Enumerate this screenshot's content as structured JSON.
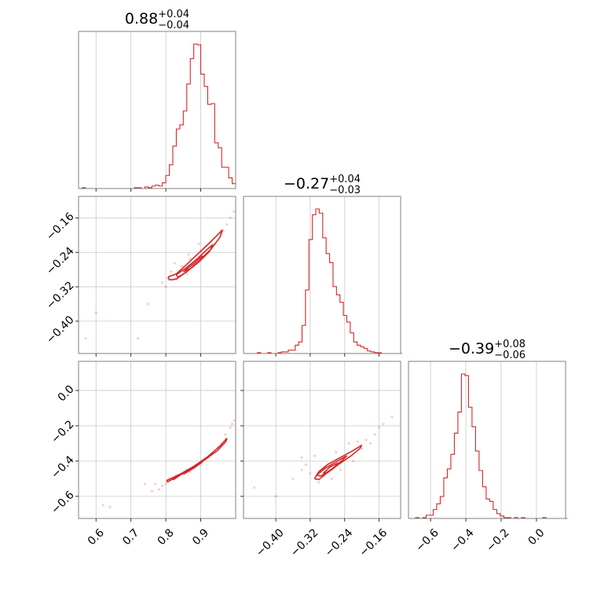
{
  "chart_data": {
    "type": "corner",
    "color": "#d62728",
    "grid": true,
    "parameters": [
      {
        "title": "0.88",
        "title_plus": "+0.04",
        "title_minus": "−0.04",
        "range": [
          0.55,
          1.0
        ],
        "ticks": [
          0.6,
          0.7,
          0.8,
          0.9
        ],
        "tick_labels": [
          "0.6",
          "0.7",
          "0.8",
          "0.9"
        ]
      },
      {
        "title": "−0.27",
        "title_plus": "+0.04",
        "title_minus": "−0.03",
        "range": [
          -0.475,
          -0.11
        ],
        "ticks": [
          -0.4,
          -0.32,
          -0.24,
          -0.16
        ],
        "tick_labels": [
          "−0.40",
          "−0.32",
          "−0.24",
          "−0.16"
        ]
      },
      {
        "title": "−0.39",
        "title_plus": "+0.08",
        "title_minus": "−0.06",
        "range": [
          -0.725,
          0.165
        ],
        "ticks": [
          -0.6,
          -0.4,
          -0.2,
          0.0
        ],
        "tick_labels": [
          "−0.6",
          "−0.4",
          "−0.2",
          "0.0"
        ]
      }
    ],
    "histograms": [
      {
        "param": 0,
        "bins": [
          0.55,
          0.56,
          0.57,
          0.58,
          0.59,
          0.6,
          0.61,
          0.62,
          0.63,
          0.64,
          0.65,
          0.66,
          0.67,
          0.68,
          0.69,
          0.7,
          0.71,
          0.72,
          0.73,
          0.74,
          0.75,
          0.76,
          0.77,
          0.78,
          0.79,
          0.8,
          0.81,
          0.82,
          0.83,
          0.84,
          0.85,
          0.86,
          0.87,
          0.88,
          0.89,
          0.9,
          0.91,
          0.92,
          0.93,
          0.94,
          0.95,
          0.96,
          0.97,
          0.98,
          0.99,
          1.0
        ],
        "counts": [
          0,
          1,
          0,
          0,
          0,
          0,
          0,
          0,
          0,
          0,
          0,
          0,
          0,
          0,
          0,
          0,
          1,
          1,
          0,
          2,
          1,
          3,
          4,
          3,
          7,
          16,
          29,
          52,
          73,
          78,
          95,
          128,
          159,
          177,
          176,
          140,
          125,
          103,
          104,
          56,
          50,
          26,
          26,
          13,
          6
        ]
      },
      {
        "param": 1,
        "bins": [
          -0.475,
          -0.467,
          -0.459,
          -0.451,
          -0.443,
          -0.435,
          -0.427,
          -0.419,
          -0.411,
          -0.403,
          -0.395,
          -0.387,
          -0.379,
          -0.371,
          -0.363,
          -0.355,
          -0.347,
          -0.339,
          -0.331,
          -0.323,
          -0.315,
          -0.307,
          -0.299,
          -0.291,
          -0.283,
          -0.275,
          -0.267,
          -0.259,
          -0.251,
          -0.243,
          -0.235,
          -0.227,
          -0.219,
          -0.211,
          -0.203,
          -0.195,
          -0.187,
          -0.179,
          -0.171,
          -0.163,
          -0.155,
          -0.147,
          -0.139,
          -0.131,
          -0.123,
          -0.115,
          -0.107
        ],
        "counts": [
          0,
          0,
          0,
          0,
          1,
          0,
          0,
          1,
          0,
          0,
          1,
          2,
          2,
          4,
          4,
          10,
          14,
          34,
          77,
          138,
          168,
          175,
          170,
          140,
          121,
          110,
          81,
          71,
          62,
          46,
          38,
          25,
          14,
          10,
          8,
          6,
          3,
          2,
          1,
          1,
          0,
          0,
          0,
          0,
          0,
          0
        ]
      },
      {
        "param": 2,
        "bins": [
          -0.725,
          -0.705,
          -0.685,
          -0.665,
          -0.645,
          -0.625,
          -0.605,
          -0.585,
          -0.565,
          -0.545,
          -0.525,
          -0.505,
          -0.485,
          -0.465,
          -0.445,
          -0.425,
          -0.405,
          -0.385,
          -0.365,
          -0.345,
          -0.325,
          -0.305,
          -0.285,
          -0.265,
          -0.245,
          -0.225,
          -0.205,
          -0.185,
          -0.165,
          -0.145,
          -0.125,
          -0.105,
          -0.085,
          -0.065,
          -0.045,
          -0.025,
          -0.005,
          0.015,
          0.035,
          0.055,
          0.075,
          0.095,
          0.115,
          0.135,
          0.155,
          0.175
        ],
        "counts": [
          0,
          0,
          1,
          0,
          1,
          4,
          4,
          11,
          18,
          27,
          50,
          61,
          79,
          105,
          131,
          178,
          176,
          137,
          113,
          83,
          59,
          39,
          24,
          21,
          11,
          6,
          3,
          1,
          1,
          0,
          1,
          0,
          1,
          0,
          0,
          0,
          0,
          0,
          1,
          0,
          0,
          0,
          0,
          0,
          0
        ]
      }
    ],
    "joints": [
      {
        "x_param": 0,
        "y_param": 1,
        "contours": [
          [
            [
              0.807,
              -0.297
            ],
            [
              0.83,
              -0.29
            ],
            [
              0.86,
              -0.268
            ],
            [
              0.89,
              -0.245
            ],
            [
              0.92,
              -0.222
            ],
            [
              0.95,
              -0.198
            ],
            [
              0.962,
              -0.188
            ],
            [
              0.955,
              -0.205
            ],
            [
              0.93,
              -0.232
            ],
            [
              0.895,
              -0.26
            ],
            [
              0.86,
              -0.285
            ],
            [
              0.83,
              -0.302
            ],
            [
              0.81,
              -0.304
            ],
            [
              0.807,
              -0.297
            ]
          ],
          [
            [
              0.83,
              -0.292
            ],
            [
              0.86,
              -0.275
            ],
            [
              0.89,
              -0.255
            ],
            [
              0.92,
              -0.232
            ],
            [
              0.935,
              -0.222
            ],
            [
              0.925,
              -0.238
            ],
            [
              0.895,
              -0.262
            ],
            [
              0.86,
              -0.285
            ],
            [
              0.835,
              -0.298
            ],
            [
              0.83,
              -0.292
            ]
          ],
          [
            [
              0.85,
              -0.285
            ],
            [
              0.88,
              -0.266
            ],
            [
              0.905,
              -0.248
            ],
            [
              0.9,
              -0.258
            ],
            [
              0.87,
              -0.278
            ],
            [
              0.85,
              -0.285
            ]
          ]
        ],
        "points": [
          [
            0.83,
            -0.302
          ],
          [
            0.82,
            -0.305
          ],
          [
            0.805,
            -0.3
          ],
          [
            0.79,
            -0.31
          ],
          [
            0.815,
            -0.285
          ],
          [
            0.845,
            -0.272
          ],
          [
            0.87,
            -0.255
          ],
          [
            0.9,
            -0.238
          ],
          [
            0.93,
            -0.215
          ],
          [
            0.955,
            -0.195
          ],
          [
            0.975,
            -0.175
          ],
          [
            0.985,
            -0.16
          ],
          [
            0.995,
            -0.145
          ],
          [
            0.88,
            -0.27
          ],
          [
            0.86,
            -0.29
          ],
          [
            0.84,
            -0.295
          ],
          [
            0.91,
            -0.25
          ],
          [
            0.94,
            -0.22
          ],
          [
            0.965,
            -0.19
          ],
          [
            0.8,
            -0.32
          ],
          [
            0.75,
            -0.36
          ],
          [
            0.72,
            -0.44
          ],
          [
            0.6,
            -0.38
          ],
          [
            0.57,
            -0.44
          ],
          [
            0.825,
            -0.265
          ],
          [
            0.865,
            -0.245
          ],
          [
            0.895,
            -0.22
          ]
        ]
      },
      {
        "x_param": 0,
        "y_param": 2,
        "contours": [
          [
            [
              0.802,
              -0.51
            ],
            [
              0.84,
              -0.475
            ],
            [
              0.88,
              -0.43
            ],
            [
              0.92,
              -0.375
            ],
            [
              0.955,
              -0.315
            ],
            [
              0.975,
              -0.27
            ],
            [
              0.972,
              -0.29
            ],
            [
              0.948,
              -0.34
            ],
            [
              0.91,
              -0.395
            ],
            [
              0.87,
              -0.445
            ],
            [
              0.83,
              -0.49
            ],
            [
              0.805,
              -0.518
            ],
            [
              0.802,
              -0.51
            ]
          ],
          [
            [
              0.82,
              -0.5
            ],
            [
              0.86,
              -0.458
            ],
            [
              0.9,
              -0.408
            ],
            [
              0.935,
              -0.352
            ],
            [
              0.928,
              -0.365
            ],
            [
              0.89,
              -0.42
            ],
            [
              0.85,
              -0.468
            ],
            [
              0.822,
              -0.505
            ],
            [
              0.82,
              -0.5
            ]
          ],
          [
            [
              0.85,
              -0.475
            ],
            [
              0.88,
              -0.44
            ],
            [
              0.905,
              -0.405
            ],
            [
              0.895,
              -0.418
            ],
            [
              0.865,
              -0.455
            ],
            [
              0.85,
              -0.475
            ]
          ]
        ],
        "points": [
          [
            0.76,
            -0.57
          ],
          [
            0.79,
            -0.54
          ],
          [
            0.74,
            -0.53
          ],
          [
            0.97,
            -0.25
          ],
          [
            0.985,
            -0.21
          ],
          [
            0.995,
            -0.17
          ],
          [
            0.62,
            -0.65
          ],
          [
            0.64,
            -0.66
          ],
          [
            0.81,
            -0.5
          ],
          [
            0.83,
            -0.48
          ],
          [
            0.86,
            -0.45
          ],
          [
            0.89,
            -0.42
          ],
          [
            0.92,
            -0.38
          ],
          [
            0.95,
            -0.32
          ],
          [
            0.96,
            -0.3
          ],
          [
            0.78,
            -0.56
          ],
          [
            0.77,
            -0.53
          ],
          [
            0.99,
            -0.19
          ],
          [
            0.8,
            -0.53
          ],
          [
            0.87,
            -0.46
          ]
        ]
      },
      {
        "x_param": 1,
        "y_param": 2,
        "contours": [
          [
            [
              -0.31,
              -0.5
            ],
            [
              -0.3,
              -0.46
            ],
            [
              -0.28,
              -0.42
            ],
            [
              -0.25,
              -0.38
            ],
            [
              -0.22,
              -0.34
            ],
            [
              -0.2,
              -0.31
            ],
            [
              -0.205,
              -0.33
            ],
            [
              -0.225,
              -0.37
            ],
            [
              -0.255,
              -0.42
            ],
            [
              -0.28,
              -0.465
            ],
            [
              -0.3,
              -0.505
            ],
            [
              -0.31,
              -0.5
            ]
          ],
          [
            [
              -0.305,
              -0.48
            ],
            [
              -0.285,
              -0.44
            ],
            [
              -0.26,
              -0.405
            ],
            [
              -0.235,
              -0.37
            ],
            [
              -0.245,
              -0.395
            ],
            [
              -0.27,
              -0.445
            ],
            [
              -0.295,
              -0.485
            ],
            [
              -0.305,
              -0.48
            ]
          ],
          [
            [
              -0.29,
              -0.47
            ],
            [
              -0.275,
              -0.435
            ],
            [
              -0.255,
              -0.41
            ],
            [
              -0.265,
              -0.44
            ],
            [
              -0.28,
              -0.465
            ],
            [
              -0.29,
              -0.47
            ]
          ]
        ],
        "points": [
          [
            -0.33,
            -0.42
          ],
          [
            -0.34,
            -0.38
          ],
          [
            -0.31,
            -0.37
          ],
          [
            -0.26,
            -0.35
          ],
          [
            -0.23,
            -0.3
          ],
          [
            -0.21,
            -0.29
          ],
          [
            -0.19,
            -0.28
          ],
          [
            -0.17,
            -0.25
          ],
          [
            -0.16,
            -0.21
          ],
          [
            -0.15,
            -0.19
          ],
          [
            -0.32,
            -0.47
          ],
          [
            -0.3,
            -0.52
          ],
          [
            -0.27,
            -0.5
          ],
          [
            -0.25,
            -0.45
          ],
          [
            -0.22,
            -0.4
          ],
          [
            -0.45,
            -0.55
          ],
          [
            -0.4,
            -0.6
          ],
          [
            -0.36,
            -0.5
          ],
          [
            -0.34,
            -0.45
          ],
          [
            -0.2,
            -0.33
          ],
          [
            -0.18,
            -0.3
          ],
          [
            -0.13,
            -0.15
          ]
        ]
      }
    ]
  }
}
